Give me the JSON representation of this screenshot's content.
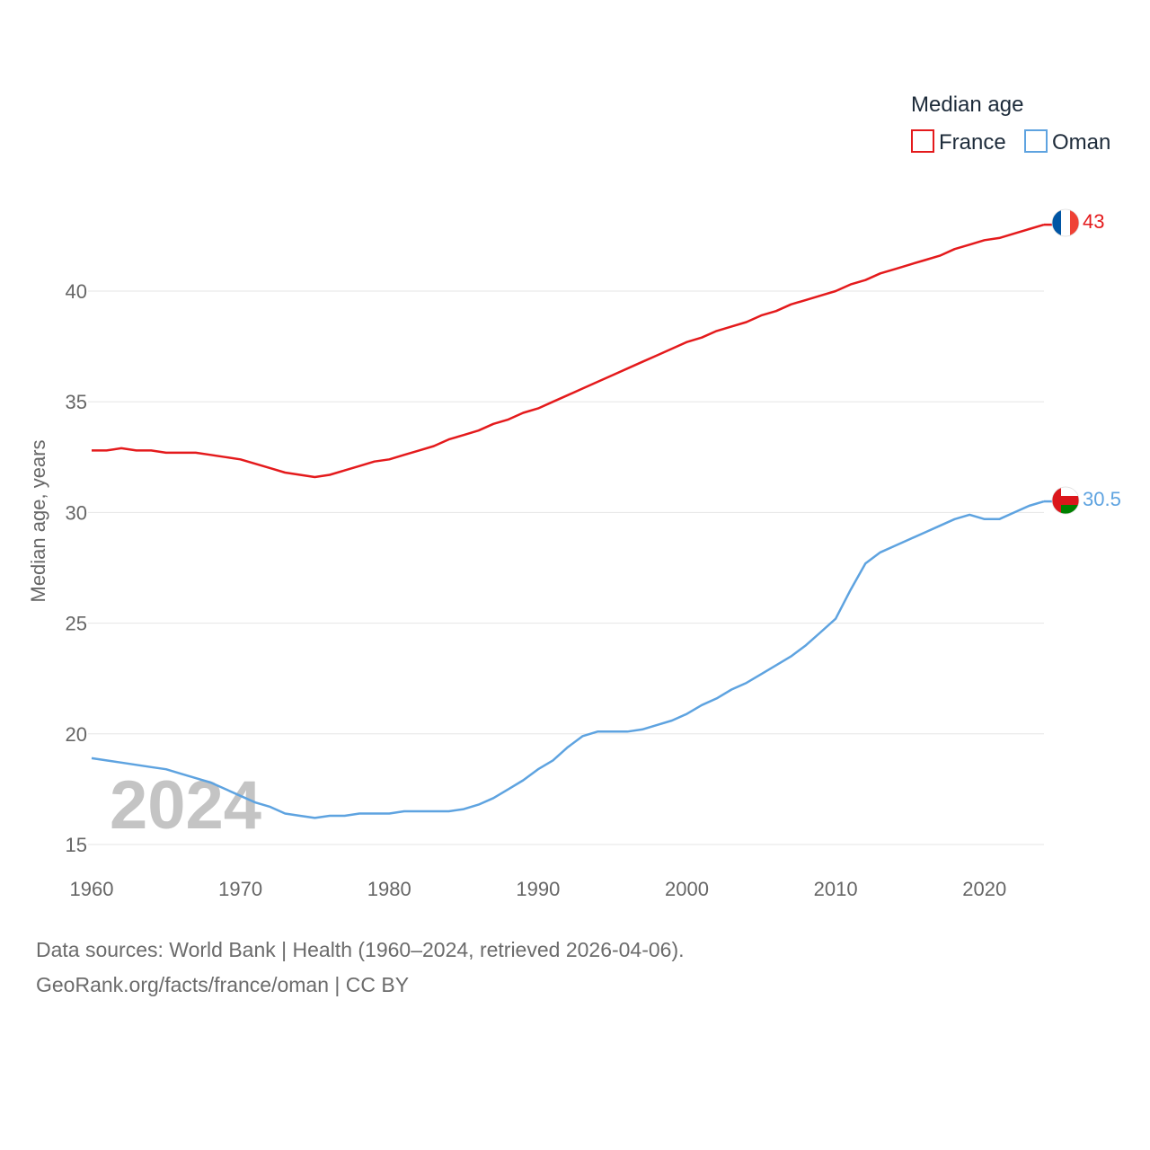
{
  "chart_data": {
    "type": "line",
    "ylabel": "Median age, years",
    "ylim": [
      15,
      44
    ],
    "xlim": [
      1960,
      2024
    ],
    "yticks": [
      15,
      20,
      25,
      30,
      35,
      40
    ],
    "xticks": [
      1960,
      1970,
      1980,
      1990,
      2000,
      2010,
      2020
    ],
    "year_label": "2024",
    "legend": {
      "title": "Median age",
      "position": "top-right"
    },
    "series": [
      {
        "name": "France",
        "color": "#e41a1c",
        "end_label": "43",
        "flag": "france-flag-icon",
        "points": [
          [
            1960,
            32.8
          ],
          [
            1961,
            32.8
          ],
          [
            1962,
            32.9
          ],
          [
            1963,
            32.8
          ],
          [
            1964,
            32.8
          ],
          [
            1965,
            32.7
          ],
          [
            1966,
            32.7
          ],
          [
            1967,
            32.7
          ],
          [
            1968,
            32.6
          ],
          [
            1969,
            32.5
          ],
          [
            1970,
            32.4
          ],
          [
            1971,
            32.2
          ],
          [
            1972,
            32.0
          ],
          [
            1973,
            31.8
          ],
          [
            1974,
            31.7
          ],
          [
            1975,
            31.6
          ],
          [
            1976,
            31.7
          ],
          [
            1977,
            31.9
          ],
          [
            1978,
            32.1
          ],
          [
            1979,
            32.3
          ],
          [
            1980,
            32.4
          ],
          [
            1981,
            32.6
          ],
          [
            1982,
            32.8
          ],
          [
            1983,
            33.0
          ],
          [
            1984,
            33.3
          ],
          [
            1985,
            33.5
          ],
          [
            1986,
            33.7
          ],
          [
            1987,
            34.0
          ],
          [
            1988,
            34.2
          ],
          [
            1989,
            34.5
          ],
          [
            1990,
            34.7
          ],
          [
            1991,
            35.0
          ],
          [
            1992,
            35.3
          ],
          [
            1993,
            35.6
          ],
          [
            1994,
            35.9
          ],
          [
            1995,
            36.2
          ],
          [
            1996,
            36.5
          ],
          [
            1997,
            36.8
          ],
          [
            1998,
            37.1
          ],
          [
            1999,
            37.4
          ],
          [
            2000,
            37.7
          ],
          [
            2001,
            37.9
          ],
          [
            2002,
            38.2
          ],
          [
            2003,
            38.4
          ],
          [
            2004,
            38.6
          ],
          [
            2005,
            38.9
          ],
          [
            2006,
            39.1
          ],
          [
            2007,
            39.4
          ],
          [
            2008,
            39.6
          ],
          [
            2009,
            39.8
          ],
          [
            2010,
            40.0
          ],
          [
            2011,
            40.3
          ],
          [
            2012,
            40.5
          ],
          [
            2013,
            40.8
          ],
          [
            2014,
            41.0
          ],
          [
            2015,
            41.2
          ],
          [
            2016,
            41.4
          ],
          [
            2017,
            41.6
          ],
          [
            2018,
            41.9
          ],
          [
            2019,
            42.1
          ],
          [
            2020,
            42.3
          ],
          [
            2021,
            42.4
          ],
          [
            2022,
            42.6
          ],
          [
            2023,
            42.8
          ],
          [
            2024,
            43.0
          ]
        ]
      },
      {
        "name": "Oman",
        "color": "#5ea3e0",
        "end_label": "30.5",
        "flag": "oman-flag-icon",
        "points": [
          [
            1960,
            18.9
          ],
          [
            1961,
            18.8
          ],
          [
            1962,
            18.7
          ],
          [
            1963,
            18.6
          ],
          [
            1964,
            18.5
          ],
          [
            1965,
            18.4
          ],
          [
            1966,
            18.2
          ],
          [
            1967,
            18.0
          ],
          [
            1968,
            17.8
          ],
          [
            1969,
            17.5
          ],
          [
            1970,
            17.2
          ],
          [
            1971,
            16.9
          ],
          [
            1972,
            16.7
          ],
          [
            1973,
            16.4
          ],
          [
            1974,
            16.3
          ],
          [
            1975,
            16.2
          ],
          [
            1976,
            16.3
          ],
          [
            1977,
            16.3
          ],
          [
            1978,
            16.4
          ],
          [
            1979,
            16.4
          ],
          [
            1980,
            16.4
          ],
          [
            1981,
            16.5
          ],
          [
            1982,
            16.5
          ],
          [
            1983,
            16.5
          ],
          [
            1984,
            16.5
          ],
          [
            1985,
            16.6
          ],
          [
            1986,
            16.8
          ],
          [
            1987,
            17.1
          ],
          [
            1988,
            17.5
          ],
          [
            1989,
            17.9
          ],
          [
            1990,
            18.4
          ],
          [
            1991,
            18.8
          ],
          [
            1992,
            19.4
          ],
          [
            1993,
            19.9
          ],
          [
            1994,
            20.1
          ],
          [
            1995,
            20.1
          ],
          [
            1996,
            20.1
          ],
          [
            1997,
            20.2
          ],
          [
            1998,
            20.4
          ],
          [
            1999,
            20.6
          ],
          [
            2000,
            20.9
          ],
          [
            2001,
            21.3
          ],
          [
            2002,
            21.6
          ],
          [
            2003,
            22.0
          ],
          [
            2004,
            22.3
          ],
          [
            2005,
            22.7
          ],
          [
            2006,
            23.1
          ],
          [
            2007,
            23.5
          ],
          [
            2008,
            24.0
          ],
          [
            2009,
            24.6
          ],
          [
            2010,
            25.2
          ],
          [
            2011,
            26.5
          ],
          [
            2012,
            27.7
          ],
          [
            2013,
            28.2
          ],
          [
            2014,
            28.5
          ],
          [
            2015,
            28.8
          ],
          [
            2016,
            29.1
          ],
          [
            2017,
            29.4
          ],
          [
            2018,
            29.7
          ],
          [
            2019,
            29.9
          ],
          [
            2020,
            29.7
          ],
          [
            2021,
            29.7
          ],
          [
            2022,
            30.0
          ],
          [
            2023,
            30.3
          ],
          [
            2024,
            30.5
          ]
        ]
      }
    ]
  },
  "footer": {
    "source_line": "Data sources: World Bank | Health (1960–2024, retrieved 2026-04-06).",
    "attribution_line": "GeoRank.org/facts/france/oman | CC BY"
  }
}
